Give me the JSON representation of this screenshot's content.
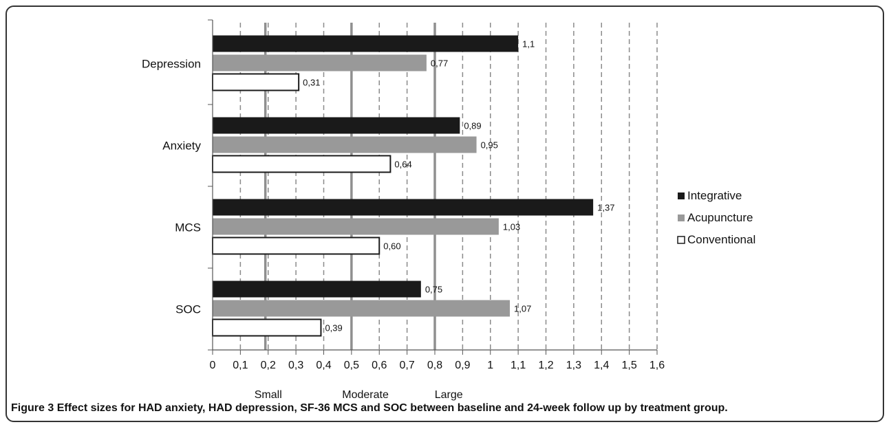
{
  "caption": {
    "label": "Figure 3",
    "text": "Effect sizes for HAD anxiety, HAD depression, SF-36 MCS and SOC between baseline and 24-week follow up by treatment group."
  },
  "chart_data": {
    "type": "bar",
    "orientation": "horizontal",
    "categories": [
      "Depression",
      "Anxiety",
      "MCS",
      "SOC"
    ],
    "series": [
      {
        "name": "Integrative",
        "color": "#1a1a1a",
        "values": [
          1.1,
          0.89,
          1.37,
          0.75
        ],
        "labels": [
          "1,1",
          "0,89",
          "1,37",
          "0,75"
        ]
      },
      {
        "name": "Acupuncture",
        "color": "#999999",
        "values": [
          0.77,
          0.95,
          1.03,
          1.07
        ],
        "labels": [
          "0,77",
          "0,95",
          "1,03",
          "1,07"
        ]
      },
      {
        "name": "Conventional",
        "color": "#ffffff",
        "values": [
          0.31,
          0.64,
          0.6,
          0.39
        ],
        "labels": [
          "0,31",
          "0,64",
          "0,60",
          "0,39"
        ]
      }
    ],
    "xlim": [
      0,
      1.6
    ],
    "xticks": [
      0,
      0.1,
      0.2,
      0.3,
      0.4,
      0.5,
      0.6,
      0.7,
      0.8,
      0.9,
      1,
      1.1,
      1.2,
      1.3,
      1.4,
      1.5,
      1.6
    ],
    "xtick_labels": [
      "0",
      "0,1",
      "0,2",
      "0,3",
      "0,4",
      "0,5",
      "0,6",
      "0,7",
      "0,8",
      "0,9",
      "1",
      "1,1",
      "1,2",
      "1,3",
      "1,4",
      "1,5",
      "1,6"
    ],
    "reference_lines": [
      0.19,
      0.5,
      0.8
    ],
    "effect_size_labels": [
      {
        "text": "Small",
        "at": 0.2
      },
      {
        "text": "Moderate",
        "at": 0.55
      },
      {
        "text": "Large",
        "at": 0.85
      }
    ],
    "grid": "vertical dashed",
    "legend_position": "right"
  }
}
